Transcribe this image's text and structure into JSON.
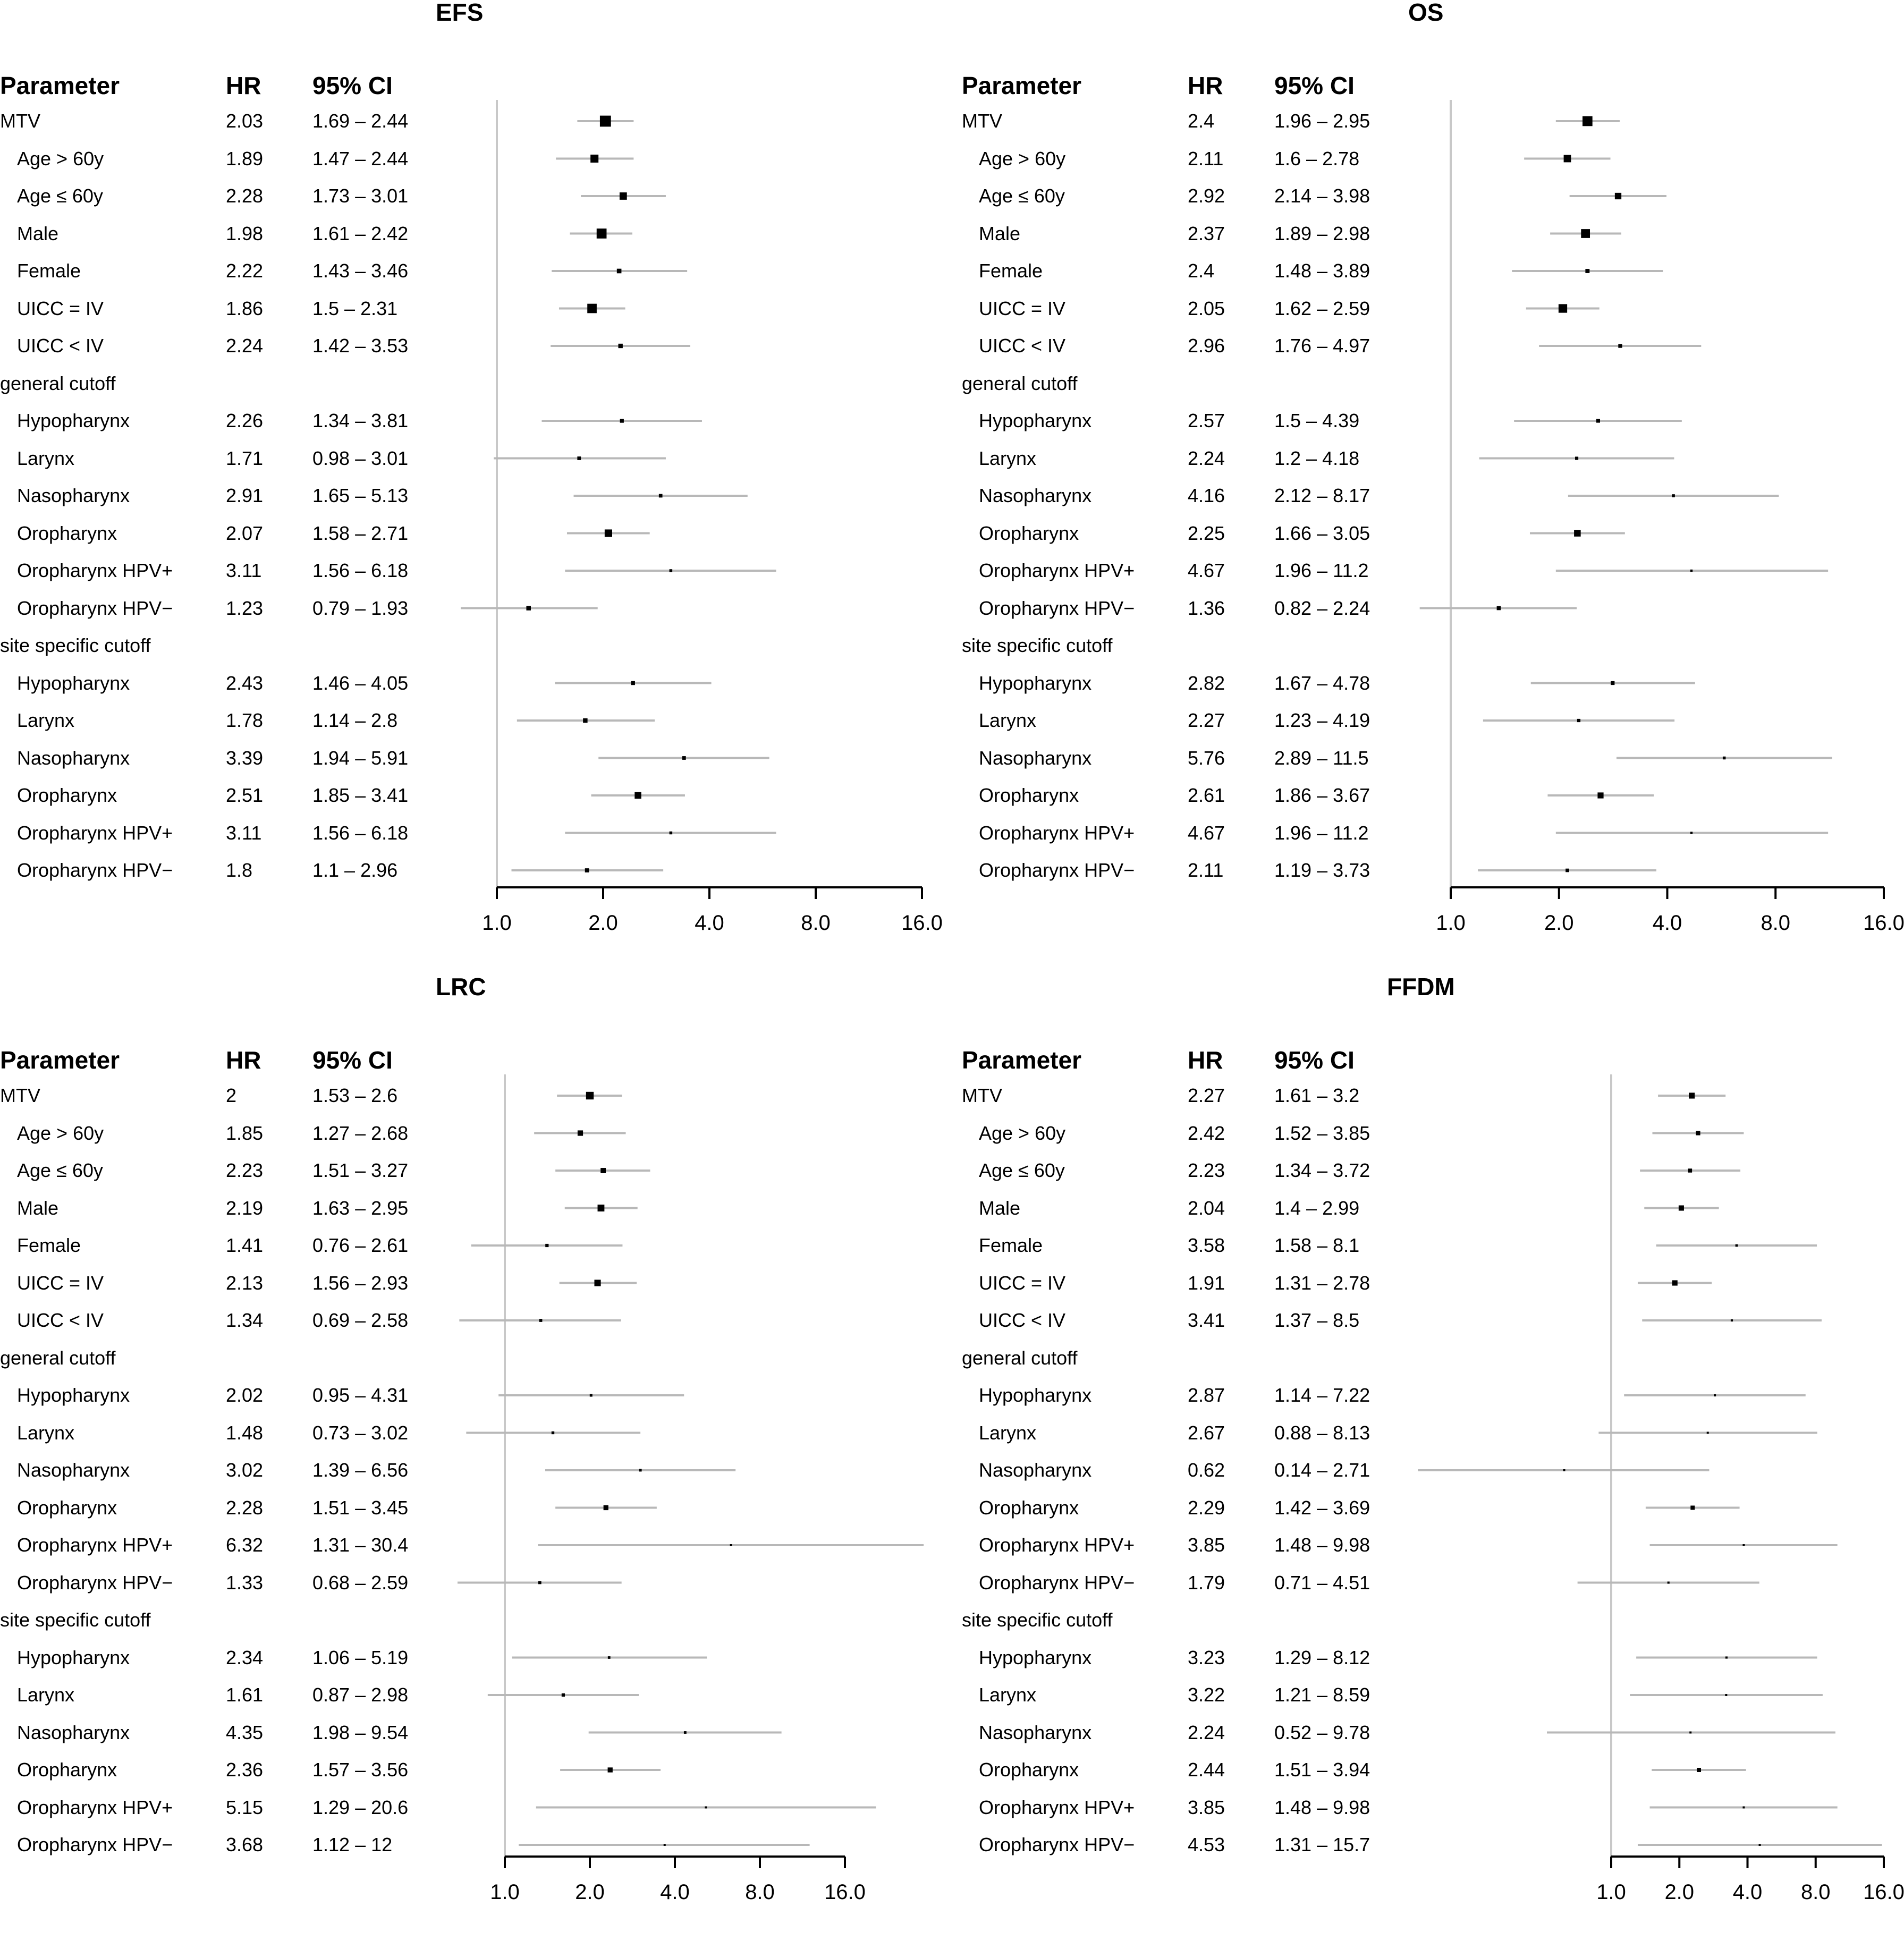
{
  "headers": {
    "parameter": "Parameter",
    "hr": "HR",
    "ci": "95% CI"
  },
  "axis": {
    "ticks": [
      1,
      2,
      4,
      8,
      16
    ],
    "tick_labels": [
      "1.0",
      "2.0",
      "4.0",
      "8.0",
      "16.0"
    ]
  },
  "chart_data": [
    {
      "type": "forest",
      "title": "EFS",
      "xscale": "log2",
      "rows": [
        {
          "label": "MTV",
          "indent": false,
          "hr": 2.03,
          "lo": 1.69,
          "hi": 2.44,
          "hr_text": "2.03",
          "ci_text": "1.69 – 2.44"
        },
        {
          "label": "Age > 60y",
          "indent": true,
          "hr": 1.89,
          "lo": 1.47,
          "hi": 2.44,
          "hr_text": "1.89",
          "ci_text": "1.47 – 2.44"
        },
        {
          "label": "Age ≤ 60y",
          "indent": true,
          "hr": 2.28,
          "lo": 1.73,
          "hi": 3.01,
          "hr_text": "2.28",
          "ci_text": "1.73 – 3.01"
        },
        {
          "label": "Male",
          "indent": true,
          "hr": 1.98,
          "lo": 1.61,
          "hi": 2.42,
          "hr_text": "1.98",
          "ci_text": "1.61 – 2.42"
        },
        {
          "label": "Female",
          "indent": true,
          "hr": 2.22,
          "lo": 1.43,
          "hi": 3.46,
          "hr_text": "2.22",
          "ci_text": "1.43 – 3.46"
        },
        {
          "label": "UICC = IV",
          "indent": true,
          "hr": 1.86,
          "lo": 1.5,
          "hi": 2.31,
          "hr_text": "1.86",
          "ci_text": "1.5 – 2.31"
        },
        {
          "label": "UICC < IV",
          "indent": true,
          "hr": 2.24,
          "lo": 1.42,
          "hi": 3.53,
          "hr_text": "2.24",
          "ci_text": "1.42 – 3.53"
        },
        {
          "label": "general cutoff",
          "indent": false,
          "group": true
        },
        {
          "label": "Hypopharynx",
          "indent": true,
          "hr": 2.26,
          "lo": 1.34,
          "hi": 3.81,
          "hr_text": "2.26",
          "ci_text": "1.34 – 3.81"
        },
        {
          "label": "Larynx",
          "indent": true,
          "hr": 1.71,
          "lo": 0.98,
          "hi": 3.01,
          "hr_text": "1.71",
          "ci_text": "0.98 – 3.01"
        },
        {
          "label": "Nasopharynx",
          "indent": true,
          "hr": 2.91,
          "lo": 1.65,
          "hi": 5.13,
          "hr_text": "2.91",
          "ci_text": "1.65 – 5.13"
        },
        {
          "label": "Oropharynx",
          "indent": true,
          "hr": 2.07,
          "lo": 1.58,
          "hi": 2.71,
          "hr_text": "2.07",
          "ci_text": "1.58 – 2.71"
        },
        {
          "label": "Oropharynx HPV+",
          "indent": true,
          "hr": 3.11,
          "lo": 1.56,
          "hi": 6.18,
          "hr_text": "3.11",
          "ci_text": "1.56 – 6.18"
        },
        {
          "label": "Oropharynx HPV−",
          "indent": true,
          "hr": 1.23,
          "lo": 0.79,
          "hi": 1.93,
          "hr_text": "1.23",
          "ci_text": "0.79 – 1.93"
        },
        {
          "label": "site specific cutoff",
          "indent": false,
          "group": true
        },
        {
          "label": "Hypopharynx",
          "indent": true,
          "hr": 2.43,
          "lo": 1.46,
          "hi": 4.05,
          "hr_text": "2.43",
          "ci_text": "1.46 – 4.05"
        },
        {
          "label": "Larynx",
          "indent": true,
          "hr": 1.78,
          "lo": 1.14,
          "hi": 2.8,
          "hr_text": "1.78",
          "ci_text": "1.14 – 2.8"
        },
        {
          "label": "Nasopharynx",
          "indent": true,
          "hr": 3.39,
          "lo": 1.94,
          "hi": 5.91,
          "hr_text": "3.39",
          "ci_text": "1.94 – 5.91"
        },
        {
          "label": "Oropharynx",
          "indent": true,
          "hr": 2.51,
          "lo": 1.85,
          "hi": 3.41,
          "hr_text": "2.51",
          "ci_text": "1.85 – 3.41"
        },
        {
          "label": "Oropharynx HPV+",
          "indent": true,
          "hr": 3.11,
          "lo": 1.56,
          "hi": 6.18,
          "hr_text": "3.11",
          "ci_text": "1.56 – 6.18"
        },
        {
          "label": "Oropharynx HPV−",
          "indent": true,
          "hr": 1.8,
          "lo": 1.1,
          "hi": 2.96,
          "hr_text": "1.8",
          "ci_text": "1.1 – 2.96"
        }
      ]
    },
    {
      "type": "forest",
      "title": "OS",
      "xscale": "log2",
      "rows": [
        {
          "label": "MTV",
          "indent": false,
          "hr": 2.4,
          "lo": 1.96,
          "hi": 2.95,
          "hr_text": "2.4",
          "ci_text": "1.96 – 2.95"
        },
        {
          "label": "Age > 60y",
          "indent": true,
          "hr": 2.11,
          "lo": 1.6,
          "hi": 2.78,
          "hr_text": "2.11",
          "ci_text": "1.6 – 2.78"
        },
        {
          "label": "Age ≤ 60y",
          "indent": true,
          "hr": 2.92,
          "lo": 2.14,
          "hi": 3.98,
          "hr_text": "2.92",
          "ci_text": "2.14 – 3.98"
        },
        {
          "label": "Male",
          "indent": true,
          "hr": 2.37,
          "lo": 1.89,
          "hi": 2.98,
          "hr_text": "2.37",
          "ci_text": "1.89 – 2.98"
        },
        {
          "label": "Female",
          "indent": true,
          "hr": 2.4,
          "lo": 1.48,
          "hi": 3.89,
          "hr_text": "2.4",
          "ci_text": "1.48 – 3.89"
        },
        {
          "label": "UICC = IV",
          "indent": true,
          "hr": 2.05,
          "lo": 1.62,
          "hi": 2.59,
          "hr_text": "2.05",
          "ci_text": "1.62 – 2.59"
        },
        {
          "label": "UICC < IV",
          "indent": true,
          "hr": 2.96,
          "lo": 1.76,
          "hi": 4.97,
          "hr_text": "2.96",
          "ci_text": "1.76 – 4.97"
        },
        {
          "label": "general cutoff",
          "indent": false,
          "group": true
        },
        {
          "label": "Hypopharynx",
          "indent": true,
          "hr": 2.57,
          "lo": 1.5,
          "hi": 4.39,
          "hr_text": "2.57",
          "ci_text": "1.5 – 4.39"
        },
        {
          "label": "Larynx",
          "indent": true,
          "hr": 2.24,
          "lo": 1.2,
          "hi": 4.18,
          "hr_text": "2.24",
          "ci_text": "1.2 – 4.18"
        },
        {
          "label": "Nasopharynx",
          "indent": true,
          "hr": 4.16,
          "lo": 2.12,
          "hi": 8.17,
          "hr_text": "4.16",
          "ci_text": "2.12 – 8.17"
        },
        {
          "label": "Oropharynx",
          "indent": true,
          "hr": 2.25,
          "lo": 1.66,
          "hi": 3.05,
          "hr_text": "2.25",
          "ci_text": "1.66 – 3.05"
        },
        {
          "label": "Oropharynx HPV+",
          "indent": true,
          "hr": 4.67,
          "lo": 1.96,
          "hi": 11.2,
          "hr_text": "4.67",
          "ci_text": "1.96 – 11.2"
        },
        {
          "label": "Oropharynx HPV−",
          "indent": true,
          "hr": 1.36,
          "lo": 0.82,
          "hi": 2.24,
          "hr_text": "1.36",
          "ci_text": "0.82 – 2.24"
        },
        {
          "label": "site specific cutoff",
          "indent": false,
          "group": true
        },
        {
          "label": "Hypopharynx",
          "indent": true,
          "hr": 2.82,
          "lo": 1.67,
          "hi": 4.78,
          "hr_text": "2.82",
          "ci_text": "1.67 – 4.78"
        },
        {
          "label": "Larynx",
          "indent": true,
          "hr": 2.27,
          "lo": 1.23,
          "hi": 4.19,
          "hr_text": "2.27",
          "ci_text": "1.23 – 4.19"
        },
        {
          "label": "Nasopharynx",
          "indent": true,
          "hr": 5.76,
          "lo": 2.89,
          "hi": 11.5,
          "hr_text": "5.76",
          "ci_text": "2.89 – 11.5"
        },
        {
          "label": "Oropharynx",
          "indent": true,
          "hr": 2.61,
          "lo": 1.86,
          "hi": 3.67,
          "hr_text": "2.61",
          "ci_text": "1.86 – 3.67"
        },
        {
          "label": "Oropharynx HPV+",
          "indent": true,
          "hr": 4.67,
          "lo": 1.96,
          "hi": 11.2,
          "hr_text": "4.67",
          "ci_text": "1.96 – 11.2"
        },
        {
          "label": "Oropharynx HPV−",
          "indent": true,
          "hr": 2.11,
          "lo": 1.19,
          "hi": 3.73,
          "hr_text": "2.11",
          "ci_text": "1.19 – 3.73"
        }
      ]
    },
    {
      "type": "forest",
      "title": "LRC",
      "xscale": "log2",
      "rows": [
        {
          "label": "MTV",
          "indent": false,
          "hr": 2,
          "lo": 1.53,
          "hi": 2.6,
          "hr_text": "2",
          "ci_text": "1.53 – 2.6"
        },
        {
          "label": "Age > 60y",
          "indent": true,
          "hr": 1.85,
          "lo": 1.27,
          "hi": 2.68,
          "hr_text": "1.85",
          "ci_text": "1.27 – 2.68"
        },
        {
          "label": "Age ≤ 60y",
          "indent": true,
          "hr": 2.23,
          "lo": 1.51,
          "hi": 3.27,
          "hr_text": "2.23",
          "ci_text": "1.51 – 3.27"
        },
        {
          "label": "Male",
          "indent": true,
          "hr": 2.19,
          "lo": 1.63,
          "hi": 2.95,
          "hr_text": "2.19",
          "ci_text": "1.63 – 2.95"
        },
        {
          "label": "Female",
          "indent": true,
          "hr": 1.41,
          "lo": 0.76,
          "hi": 2.61,
          "hr_text": "1.41",
          "ci_text": "0.76 – 2.61"
        },
        {
          "label": "UICC = IV",
          "indent": true,
          "hr": 2.13,
          "lo": 1.56,
          "hi": 2.93,
          "hr_text": "2.13",
          "ci_text": "1.56 – 2.93"
        },
        {
          "label": "UICC < IV",
          "indent": true,
          "hr": 1.34,
          "lo": 0.69,
          "hi": 2.58,
          "hr_text": "1.34",
          "ci_text": "0.69 – 2.58"
        },
        {
          "label": "general cutoff",
          "indent": false,
          "group": true
        },
        {
          "label": "Hypopharynx",
          "indent": true,
          "hr": 2.02,
          "lo": 0.95,
          "hi": 4.31,
          "hr_text": "2.02",
          "ci_text": "0.95 – 4.31"
        },
        {
          "label": "Larynx",
          "indent": true,
          "hr": 1.48,
          "lo": 0.73,
          "hi": 3.02,
          "hr_text": "1.48",
          "ci_text": "0.73 – 3.02"
        },
        {
          "label": "Nasopharynx",
          "indent": true,
          "hr": 3.02,
          "lo": 1.39,
          "hi": 6.56,
          "hr_text": "3.02",
          "ci_text": "1.39 – 6.56"
        },
        {
          "label": "Oropharynx",
          "indent": true,
          "hr": 2.28,
          "lo": 1.51,
          "hi": 3.45,
          "hr_text": "2.28",
          "ci_text": "1.51 – 3.45"
        },
        {
          "label": "Oropharynx HPV+",
          "indent": true,
          "hr": 6.32,
          "lo": 1.31,
          "hi": 30.4,
          "hr_text": "6.32",
          "ci_text": "1.31 – 30.4"
        },
        {
          "label": "Oropharynx HPV−",
          "indent": true,
          "hr": 1.33,
          "lo": 0.68,
          "hi": 2.59,
          "hr_text": "1.33",
          "ci_text": "0.68 – 2.59"
        },
        {
          "label": "site specific cutoff",
          "indent": false,
          "group": true
        },
        {
          "label": "Hypopharynx",
          "indent": true,
          "hr": 2.34,
          "lo": 1.06,
          "hi": 5.19,
          "hr_text": "2.34",
          "ci_text": "1.06 – 5.19"
        },
        {
          "label": "Larynx",
          "indent": true,
          "hr": 1.61,
          "lo": 0.87,
          "hi": 2.98,
          "hr_text": "1.61",
          "ci_text": "0.87 – 2.98"
        },
        {
          "label": "Nasopharynx",
          "indent": true,
          "hr": 4.35,
          "lo": 1.98,
          "hi": 9.54,
          "hr_text": "4.35",
          "ci_text": "1.98 – 9.54"
        },
        {
          "label": "Oropharynx",
          "indent": true,
          "hr": 2.36,
          "lo": 1.57,
          "hi": 3.56,
          "hr_text": "2.36",
          "ci_text": "1.57 – 3.56"
        },
        {
          "label": "Oropharynx HPV+",
          "indent": true,
          "hr": 5.15,
          "lo": 1.29,
          "hi": 20.6,
          "hr_text": "5.15",
          "ci_text": "1.29 – 20.6"
        },
        {
          "label": "Oropharynx HPV−",
          "indent": true,
          "hr": 3.68,
          "lo": 1.12,
          "hi": 12,
          "hr_text": "3.68",
          "ci_text": "1.12 – 12"
        }
      ]
    },
    {
      "type": "forest",
      "title": "FFDM",
      "xscale": "log2",
      "rows": [
        {
          "label": "MTV",
          "indent": false,
          "hr": 2.27,
          "lo": 1.61,
          "hi": 3.2,
          "hr_text": "2.27",
          "ci_text": "1.61 – 3.2"
        },
        {
          "label": "Age > 60y",
          "indent": true,
          "hr": 2.42,
          "lo": 1.52,
          "hi": 3.85,
          "hr_text": "2.42",
          "ci_text": "1.52 – 3.85"
        },
        {
          "label": "Age ≤ 60y",
          "indent": true,
          "hr": 2.23,
          "lo": 1.34,
          "hi": 3.72,
          "hr_text": "2.23",
          "ci_text": "1.34 – 3.72"
        },
        {
          "label": "Male",
          "indent": true,
          "hr": 2.04,
          "lo": 1.4,
          "hi": 2.99,
          "hr_text": "2.04",
          "ci_text": "1.4 – 2.99"
        },
        {
          "label": "Female",
          "indent": true,
          "hr": 3.58,
          "lo": 1.58,
          "hi": 8.1,
          "hr_text": "3.58",
          "ci_text": "1.58 – 8.1"
        },
        {
          "label": "UICC = IV",
          "indent": true,
          "hr": 1.91,
          "lo": 1.31,
          "hi": 2.78,
          "hr_text": "1.91",
          "ci_text": "1.31 – 2.78"
        },
        {
          "label": "UICC < IV",
          "indent": true,
          "hr": 3.41,
          "lo": 1.37,
          "hi": 8.5,
          "hr_text": "3.41",
          "ci_text": "1.37 – 8.5"
        },
        {
          "label": "general cutoff",
          "indent": false,
          "group": true
        },
        {
          "label": "Hypopharynx",
          "indent": true,
          "hr": 2.87,
          "lo": 1.14,
          "hi": 7.22,
          "hr_text": "2.87",
          "ci_text": "1.14 – 7.22"
        },
        {
          "label": "Larynx",
          "indent": true,
          "hr": 2.67,
          "lo": 0.88,
          "hi": 8.13,
          "hr_text": "2.67",
          "ci_text": "0.88 – 8.13"
        },
        {
          "label": "Nasopharynx",
          "indent": true,
          "hr": 0.62,
          "lo": 0.14,
          "hi": 2.71,
          "hr_text": "0.62",
          "ci_text": "0.14 – 2.71"
        },
        {
          "label": "Oropharynx",
          "indent": true,
          "hr": 2.29,
          "lo": 1.42,
          "hi": 3.69,
          "hr_text": "2.29",
          "ci_text": "1.42 – 3.69"
        },
        {
          "label": "Oropharynx HPV+",
          "indent": true,
          "hr": 3.85,
          "lo": 1.48,
          "hi": 9.98,
          "hr_text": "3.85",
          "ci_text": "1.48 – 9.98"
        },
        {
          "label": "Oropharynx HPV−",
          "indent": true,
          "hr": 1.79,
          "lo": 0.71,
          "hi": 4.51,
          "hr_text": "1.79",
          "ci_text": "0.71 – 4.51"
        },
        {
          "label": "site specific cutoff",
          "indent": false,
          "group": true
        },
        {
          "label": "Hypopharynx",
          "indent": true,
          "hr": 3.23,
          "lo": 1.29,
          "hi": 8.12,
          "hr_text": "3.23",
          "ci_text": "1.29 – 8.12"
        },
        {
          "label": "Larynx",
          "indent": true,
          "hr": 3.22,
          "lo": 1.21,
          "hi": 8.59,
          "hr_text": "3.22",
          "ci_text": "1.21 – 8.59"
        },
        {
          "label": "Nasopharynx",
          "indent": true,
          "hr": 2.24,
          "lo": 0.52,
          "hi": 9.78,
          "hr_text": "2.24",
          "ci_text": "0.52 – 9.78"
        },
        {
          "label": "Oropharynx",
          "indent": true,
          "hr": 2.44,
          "lo": 1.51,
          "hi": 3.94,
          "hr_text": "2.44",
          "ci_text": "1.51 – 3.94"
        },
        {
          "label": "Oropharynx HPV+",
          "indent": true,
          "hr": 3.85,
          "lo": 1.48,
          "hi": 9.98,
          "hr_text": "3.85",
          "ci_text": "1.48 – 9.98"
        },
        {
          "label": "Oropharynx HPV−",
          "indent": true,
          "hr": 4.53,
          "lo": 1.31,
          "hi": 15.7,
          "hr_text": "4.53",
          "ci_text": "1.31 – 15.7"
        }
      ]
    }
  ]
}
